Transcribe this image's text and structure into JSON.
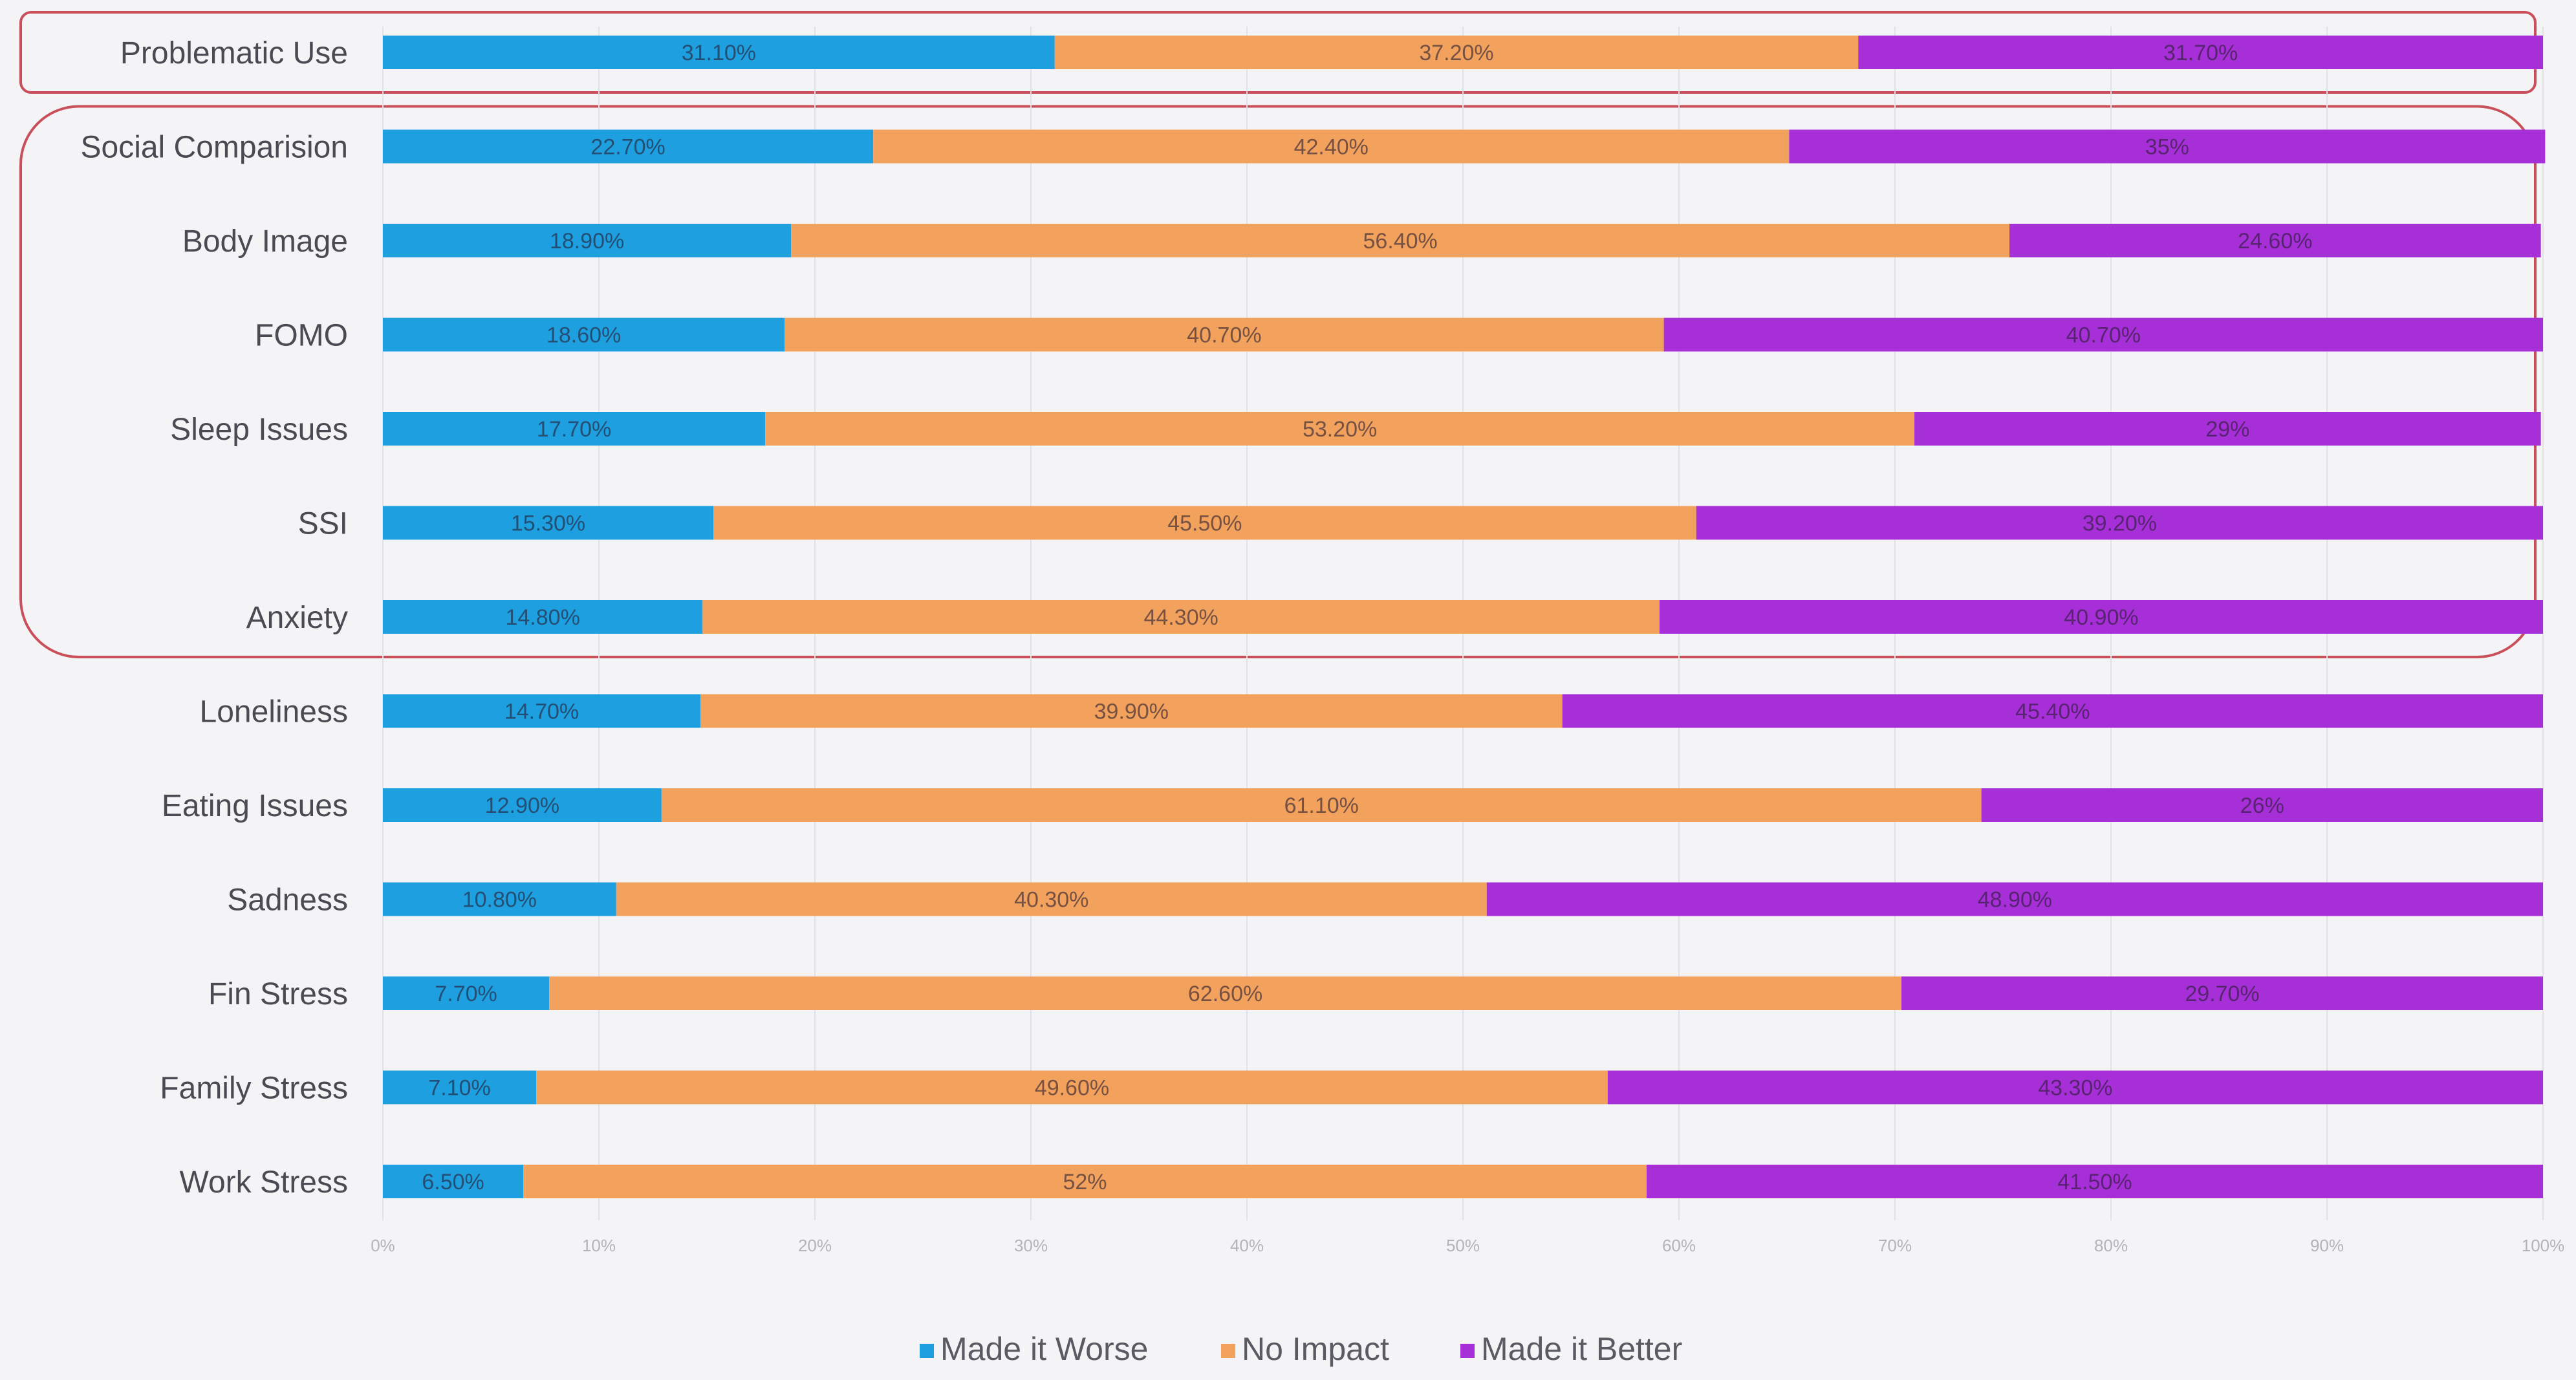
{
  "chart_data": {
    "type": "bar",
    "orientation": "horizontal",
    "stacked": true,
    "categories": [
      "Problematic Use",
      "Social Comparision",
      "Body Image",
      "FOMO",
      "Sleep Issues",
      "SSI",
      "Anxiety",
      "Loneliness",
      "Eating Issues",
      "Sadness",
      "Fin Stress",
      "Family Stress",
      "Work Stress"
    ],
    "series": [
      {
        "name": "Made it Worse",
        "color": "#1e9fe0",
        "values": [
          31.1,
          22.7,
          18.9,
          18.6,
          17.7,
          15.3,
          14.8,
          14.7,
          12.9,
          10.8,
          7.7,
          7.1,
          6.5
        ],
        "labels": [
          "31.10%",
          "22.70%",
          "18.90%",
          "18.60%",
          "17.70%",
          "15.30%",
          "14.80%",
          "14.70%",
          "12.90%",
          "10.80%",
          "7.70%",
          "7.10%",
          "6.50%"
        ]
      },
      {
        "name": "No Impact",
        "color": "#f3a25e",
        "values": [
          37.2,
          42.4,
          56.4,
          40.7,
          53.2,
          45.5,
          44.3,
          39.9,
          61.1,
          40.3,
          62.6,
          49.6,
          52
        ],
        "labels": [
          "37.20%",
          "42.40%",
          "56.40%",
          "40.70%",
          "53.20%",
          "45.50%",
          "44.30%",
          "39.90%",
          "61.10%",
          "40.30%",
          "62.60%",
          "49.60%",
          "52%"
        ]
      },
      {
        "name": "Made it Better",
        "color": "#a62fd8",
        "values": [
          31.7,
          35,
          24.6,
          40.7,
          29,
          39.2,
          40.9,
          45.4,
          26,
          48.9,
          29.7,
          43.3,
          41.5
        ],
        "labels": [
          "31.70%",
          "35%",
          "24.60%",
          "40.70%",
          "29%",
          "39.20%",
          "40.90%",
          "45.40%",
          "26%",
          "48.90%",
          "29.70%",
          "43.30%",
          "41.50%"
        ]
      }
    ],
    "x_ticks": [
      "0%",
      "10%",
      "20%",
      "30%",
      "40%",
      "50%",
      "60%",
      "70%",
      "80%",
      "90%",
      "100%"
    ],
    "xlim": [
      0,
      100
    ],
    "legend_position": "bottom-center",
    "annotations": [
      {
        "type": "highlight-box",
        "color": "#c9505a",
        "categories": [
          "Problematic Use"
        ]
      },
      {
        "type": "highlight-box",
        "color": "#c9505a",
        "categories": [
          "Social Comparision",
          "Body Image",
          "FOMO",
          "Sleep Issues",
          "SSI",
          "Anxiety"
        ]
      }
    ]
  }
}
